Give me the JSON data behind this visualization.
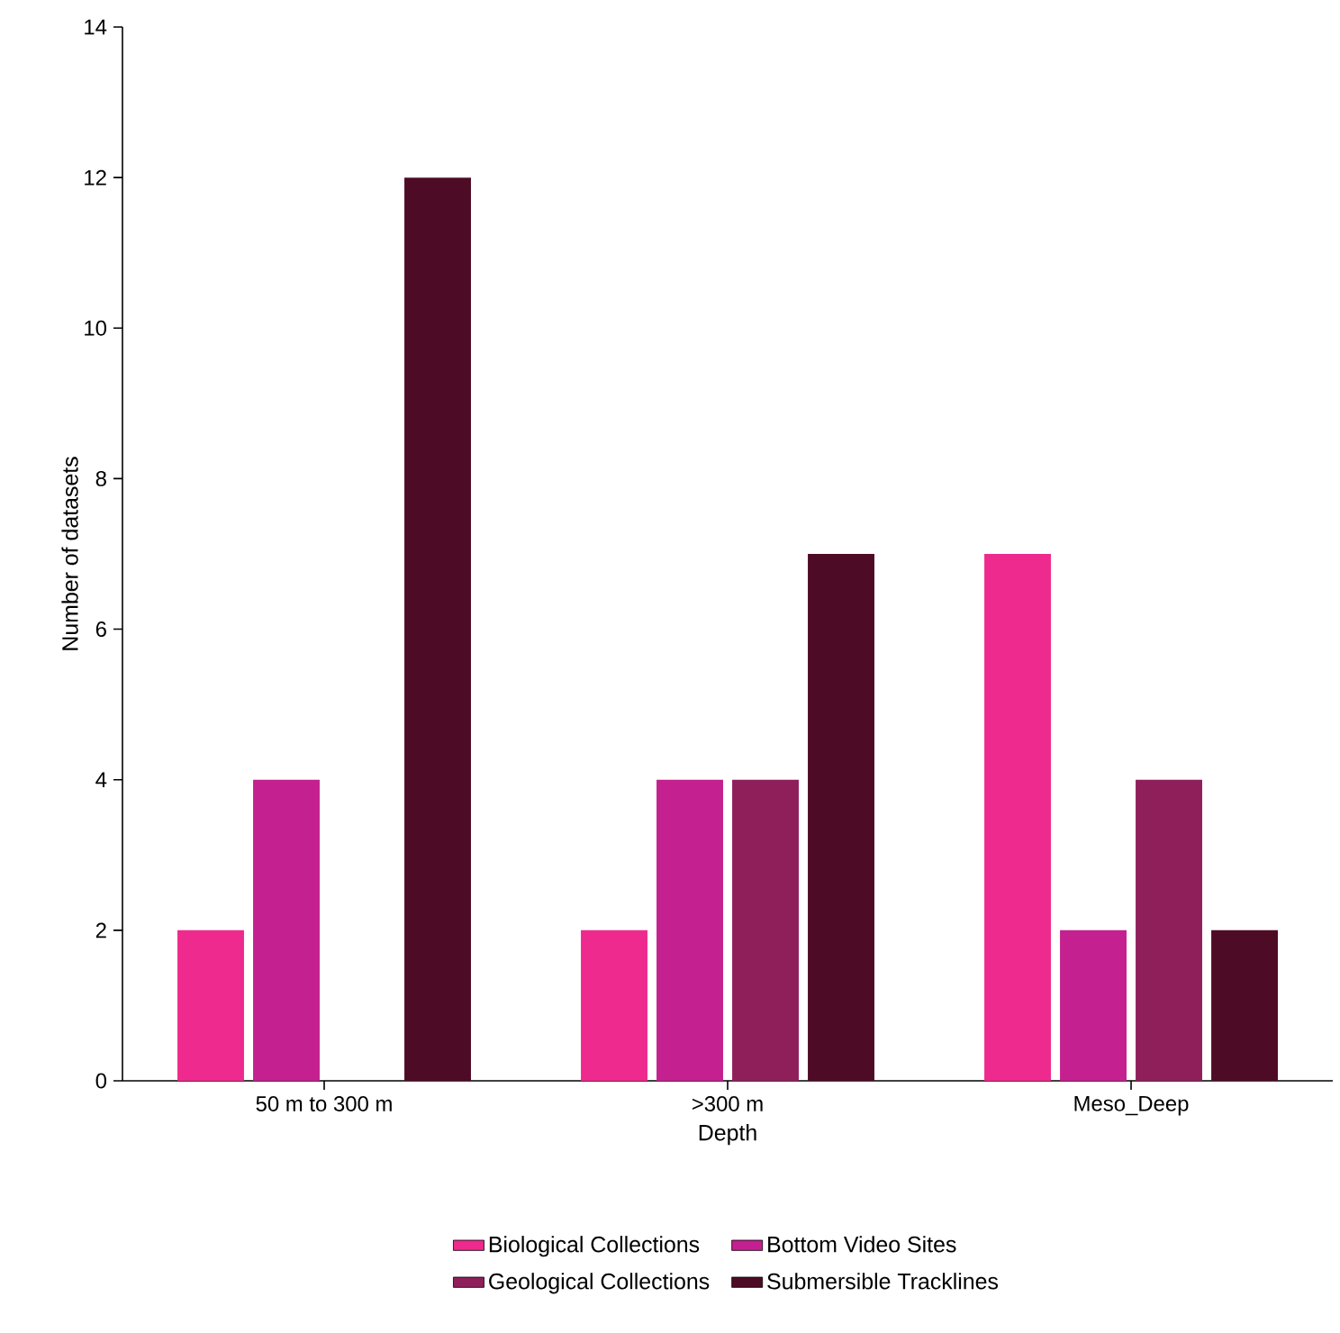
{
  "chart_data": {
    "type": "bar",
    "xlabel": "Depth",
    "ylabel": "Number of datasets",
    "categories": [
      "50 m to 300 m",
      ">300 m",
      "Meso_Deep"
    ],
    "series": [
      {
        "name": "Biological Collections",
        "color": "#ee2a8e",
        "values": [
          2,
          2,
          7
        ]
      },
      {
        "name": "Bottom Video Sites",
        "color": "#c4208f",
        "values": [
          4,
          4,
          2
        ]
      },
      {
        "name": "Geological Collections",
        "color": "#8f1f5b",
        "values": [
          null,
          4,
          4
        ]
      },
      {
        "name": "Submersible Tracklines",
        "color": "#4e0b26",
        "values": [
          12,
          7,
          2
        ]
      }
    ],
    "ylim": [
      0,
      14
    ],
    "yticks": [
      0,
      2,
      4,
      6,
      8,
      10,
      12,
      14
    ],
    "grid": false,
    "legend": "bottom"
  }
}
